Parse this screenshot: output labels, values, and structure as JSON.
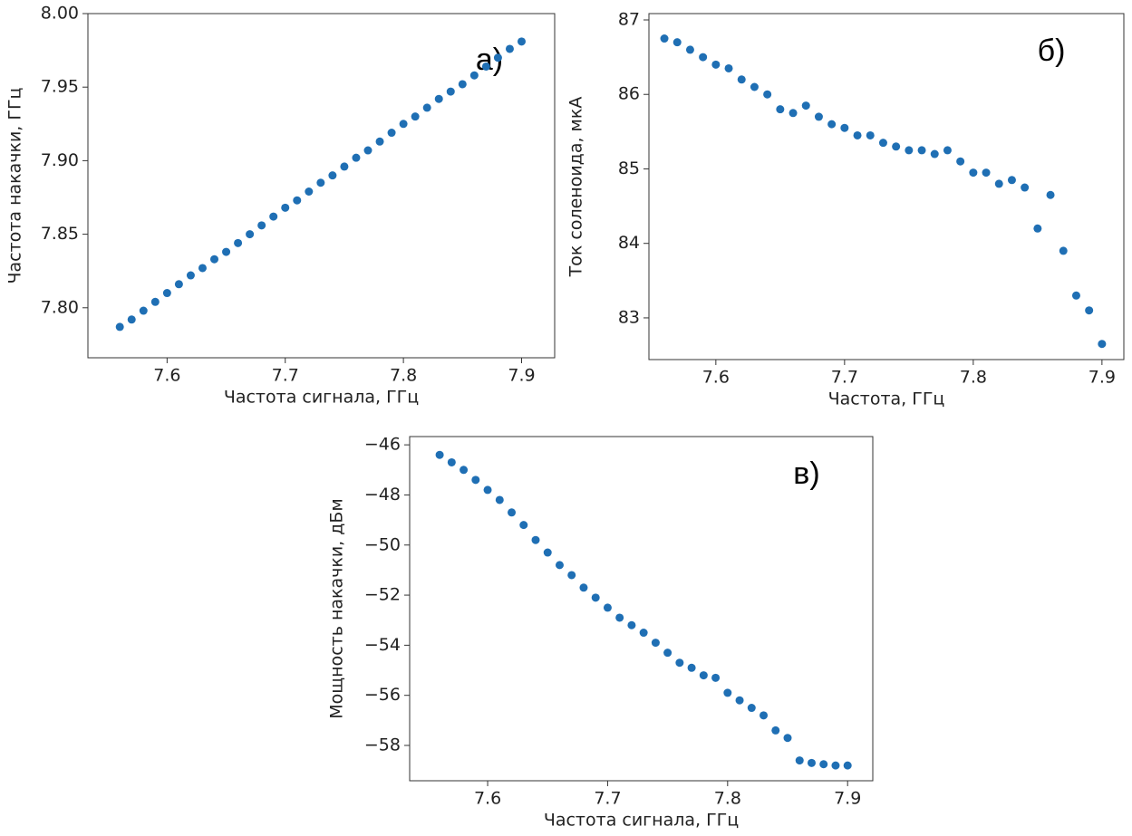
{
  "chart_data": [
    {
      "type": "scatter",
      "annotation": "а)",
      "xlabel": "Частота сигнала, ГГц",
      "ylabel": "Частота накачки, ГГц",
      "color": "#1f6fb4",
      "x": [
        7.56,
        7.57,
        7.58,
        7.59,
        7.6,
        7.61,
        7.62,
        7.63,
        7.64,
        7.65,
        7.66,
        7.67,
        7.68,
        7.69,
        7.7,
        7.71,
        7.72,
        7.73,
        7.74,
        7.75,
        7.76,
        7.77,
        7.78,
        7.79,
        7.8,
        7.81,
        7.82,
        7.83,
        7.84,
        7.85,
        7.86,
        7.87,
        7.88,
        7.89,
        7.9
      ],
      "values": [
        7.787,
        7.792,
        7.798,
        7.804,
        7.81,
        7.816,
        7.822,
        7.827,
        7.833,
        7.838,
        7.844,
        7.85,
        7.856,
        7.862,
        7.868,
        7.873,
        7.879,
        7.885,
        7.89,
        7.896,
        7.902,
        7.907,
        7.913,
        7.919,
        7.925,
        7.93,
        7.936,
        7.942,
        7.947,
        7.952,
        7.958,
        7.964,
        7.97,
        7.976,
        7.981
      ],
      "xlim": [
        7.533,
        7.928
      ],
      "ylim": [
        7.766,
        8.0
      ],
      "xticks": [
        7.6,
        7.7,
        7.8,
        7.9
      ],
      "yticks": [
        {
          "value": 7.8,
          "label": "7.80"
        },
        7.85,
        {
          "value": 7.9,
          "label": "7.90"
        },
        7.95,
        {
          "value": 8.0,
          "label": "8.00"
        }
      ]
    },
    {
      "type": "scatter",
      "annotation": "б)",
      "xlabel": "Частота, ГГц",
      "ylabel": "Ток соленоида, мкА",
      "color": "#1f6fb4",
      "x": [
        7.56,
        7.57,
        7.58,
        7.59,
        7.6,
        7.61,
        7.62,
        7.63,
        7.64,
        7.65,
        7.66,
        7.67,
        7.68,
        7.69,
        7.7,
        7.71,
        7.72,
        7.73,
        7.74,
        7.75,
        7.76,
        7.77,
        7.78,
        7.79,
        7.8,
        7.81,
        7.82,
        7.83,
        7.84,
        7.85,
        7.86,
        7.87,
        7.88,
        7.89,
        7.9
      ],
      "values": [
        86.75,
        86.7,
        86.6,
        86.5,
        86.4,
        86.35,
        86.2,
        86.1,
        86.0,
        85.8,
        85.75,
        85.85,
        85.7,
        85.6,
        85.55,
        85.45,
        85.45,
        85.35,
        85.3,
        85.25,
        85.25,
        85.2,
        85.25,
        85.1,
        84.95,
        84.95,
        84.8,
        84.85,
        84.75,
        84.2,
        84.65,
        83.9,
        83.3,
        83.1,
        82.65
      ],
      "xlim": [
        7.548,
        7.917
      ],
      "ylim": [
        82.44,
        87.085
      ],
      "xticks": [
        7.6,
        7.7,
        7.8,
        7.9
      ],
      "yticks": [
        83,
        84,
        85,
        86,
        87
      ]
    },
    {
      "type": "scatter",
      "annotation": "в)",
      "xlabel": "Частота сигнала, ГГц",
      "ylabel": "Мощность накачки, дБм",
      "color": "#1f6fb4",
      "x": [
        7.56,
        7.57,
        7.58,
        7.59,
        7.6,
        7.61,
        7.62,
        7.63,
        7.64,
        7.65,
        7.66,
        7.67,
        7.68,
        7.69,
        7.7,
        7.71,
        7.72,
        7.73,
        7.74,
        7.75,
        7.76,
        7.77,
        7.78,
        7.79,
        7.8,
        7.81,
        7.82,
        7.83,
        7.84,
        7.85,
        7.86,
        7.87,
        7.88,
        7.89,
        7.9
      ],
      "values": [
        -46.4,
        -46.7,
        -47.0,
        -47.4,
        -47.8,
        -48.2,
        -48.7,
        -49.2,
        -49.8,
        -50.3,
        -50.8,
        -51.2,
        -51.7,
        -52.1,
        -52.5,
        -52.9,
        -53.2,
        -53.5,
        -53.9,
        -54.3,
        -54.7,
        -54.9,
        -55.2,
        -55.3,
        -55.9,
        -56.2,
        -56.5,
        -56.8,
        -57.4,
        -57.7,
        -58.6,
        -58.7,
        -58.75,
        -58.8,
        -58.8
      ],
      "xlim": [
        7.535,
        7.921
      ],
      "ylim": [
        -59.41,
        -45.67
      ],
      "xticks": [
        7.6,
        7.7,
        7.8,
        7.9
      ],
      "yticks": [
        {
          "value": -58,
          "label": "−58"
        },
        {
          "value": -56,
          "label": "−56"
        },
        {
          "value": -54,
          "label": "−54"
        },
        {
          "value": -52,
          "label": "−52"
        },
        {
          "value": -50,
          "label": "−50"
        },
        {
          "value": -48,
          "label": "−48"
        },
        {
          "value": -46,
          "label": "−46"
        }
      ]
    }
  ]
}
